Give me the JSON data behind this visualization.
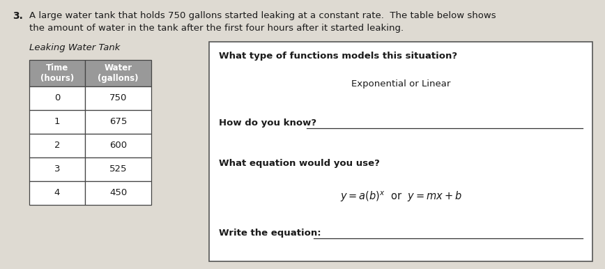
{
  "problem_number": "3.",
  "problem_text_line1": "A large water tank that holds 750 gallons started leaking at a constant rate.  The table below shows",
  "problem_text_line2": "the amount of water in the tank after the first four hours after it started leaking.",
  "table_title": "Leaking Water Tank",
  "table_headers": [
    "Time\n(hours)",
    "Water\n(gallons)"
  ],
  "table_data": [
    [
      "0",
      "750"
    ],
    [
      "1",
      "675"
    ],
    [
      "2",
      "600"
    ],
    [
      "3",
      "525"
    ],
    [
      "4",
      "450"
    ]
  ],
  "header_bg": "#999999",
  "header_text_color": "white",
  "box_question1": "What type of functions models this situation?",
  "box_answer1": "Exponential or Linear",
  "box_question2": "How do you know?",
  "box_question3": "What equation would you use?",
  "box_equation": "$y = a(b)^x$  or  $y = mx + b$",
  "box_question4": "Write the equation:",
  "bg_color": "#dedad2",
  "text_color": "#1a1a1a",
  "box_border_color": "#555555",
  "cell_border_color": "#444444",
  "line_color": "#333333"
}
